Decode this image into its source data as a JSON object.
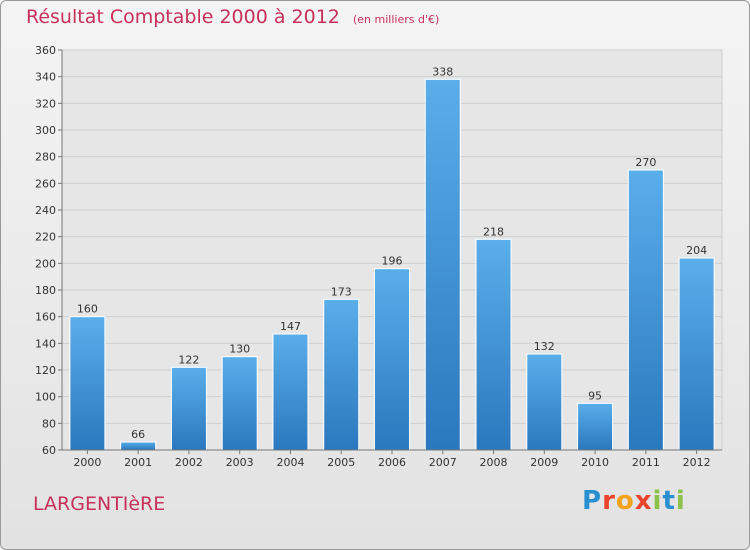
{
  "header": {
    "title": "Résultat Comptable 2000 à 2012",
    "subtitle": "(en milliers d'€)"
  },
  "footer": {
    "place": "LARGENTIèRE",
    "logo_text": "Proxiti",
    "logo_colors": [
      "#2a8fd0",
      "#e8452c",
      "#f2a31b",
      "#e8452c",
      "#8bc34a",
      "#2a8fd0",
      "#8bc34a"
    ]
  },
  "chart_data": {
    "type": "bar",
    "title": "Résultat Comptable 2000 à 2012",
    "subtitle": "(en milliers d'€)",
    "xlabel": "",
    "ylabel": "",
    "categories": [
      "2000",
      "2001",
      "2002",
      "2003",
      "2004",
      "2005",
      "2006",
      "2007",
      "2008",
      "2009",
      "2010",
      "2011",
      "2012"
    ],
    "values": [
      160,
      66,
      122,
      130,
      147,
      173,
      196,
      338,
      218,
      132,
      95,
      270,
      204
    ],
    "ylim": [
      60,
      360
    ],
    "yticks": [
      60,
      80,
      100,
      120,
      140,
      160,
      180,
      200,
      220,
      240,
      260,
      280,
      300,
      320,
      340,
      360
    ],
    "grid": true,
    "bar_color": "#3d8fd2"
  }
}
